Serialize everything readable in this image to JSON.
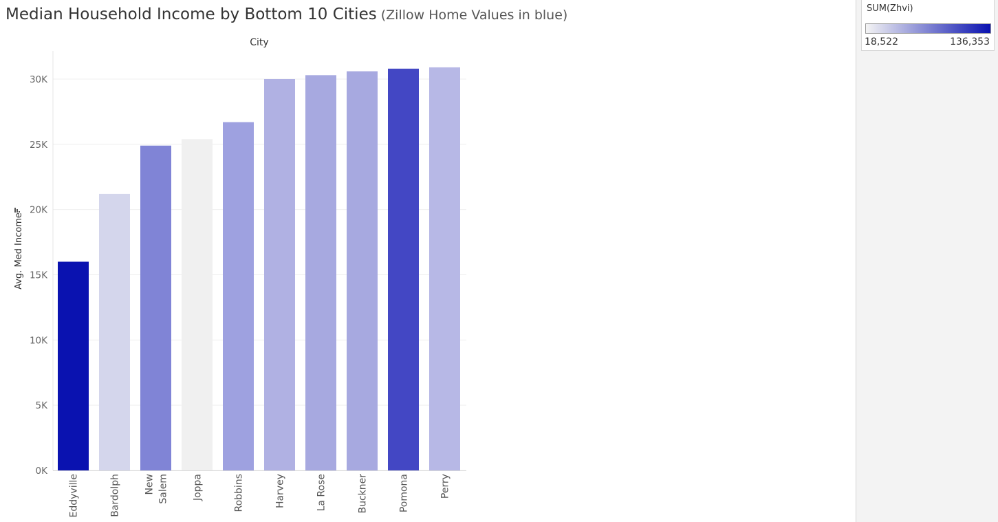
{
  "title": {
    "main": "Median Household Income by Bottom 10 Cities",
    "sub_open": " (",
    "sub": "Zillow Home Values in blue",
    "sub_close": ")"
  },
  "legend": {
    "title": "SUM(Zhvi)",
    "min": "18,522",
    "max": "136,353",
    "color_low": "#f4f4f4",
    "color_high": "#0a12b0"
  },
  "chart_data": {
    "type": "bar",
    "column_header": "City",
    "ylabel": "Avg. Med Income",
    "ylim": [
      0,
      32000
    ],
    "yticks": [
      0,
      5000,
      10000,
      15000,
      20000,
      25000,
      30000
    ],
    "ytick_labels": [
      "0K",
      "5K",
      "10K",
      "15K",
      "20K",
      "25K",
      "30K"
    ],
    "grid": true,
    "categories": [
      "Eddyville",
      "Bardolph",
      "New Salem",
      "Joppa",
      "Robbins",
      "Harvey",
      "La Rose",
      "Buckner",
      "Pomona",
      "Perry"
    ],
    "category_lines": [
      [
        "Eddyville"
      ],
      [
        "Bardolph"
      ],
      [
        "New",
        "Salem"
      ],
      [
        "Joppa"
      ],
      [
        "Robbins"
      ],
      [
        "Harvey"
      ],
      [
        "La Rose"
      ],
      [
        "Buckner"
      ],
      [
        "Pomona"
      ],
      [
        "Perry"
      ]
    ],
    "values": [
      16000,
      21200,
      24900,
      25400,
      26700,
      30000,
      30300,
      30600,
      30800,
      30900
    ],
    "bar_colors": [
      "#0a12b0",
      "#d4d6ec",
      "#8084d6",
      "#f0f0f0",
      "#9ea1e0",
      "#b0b1e3",
      "#a7a9e0",
      "#a7a9e0",
      "#4347c4",
      "#b7b8e6"
    ]
  }
}
